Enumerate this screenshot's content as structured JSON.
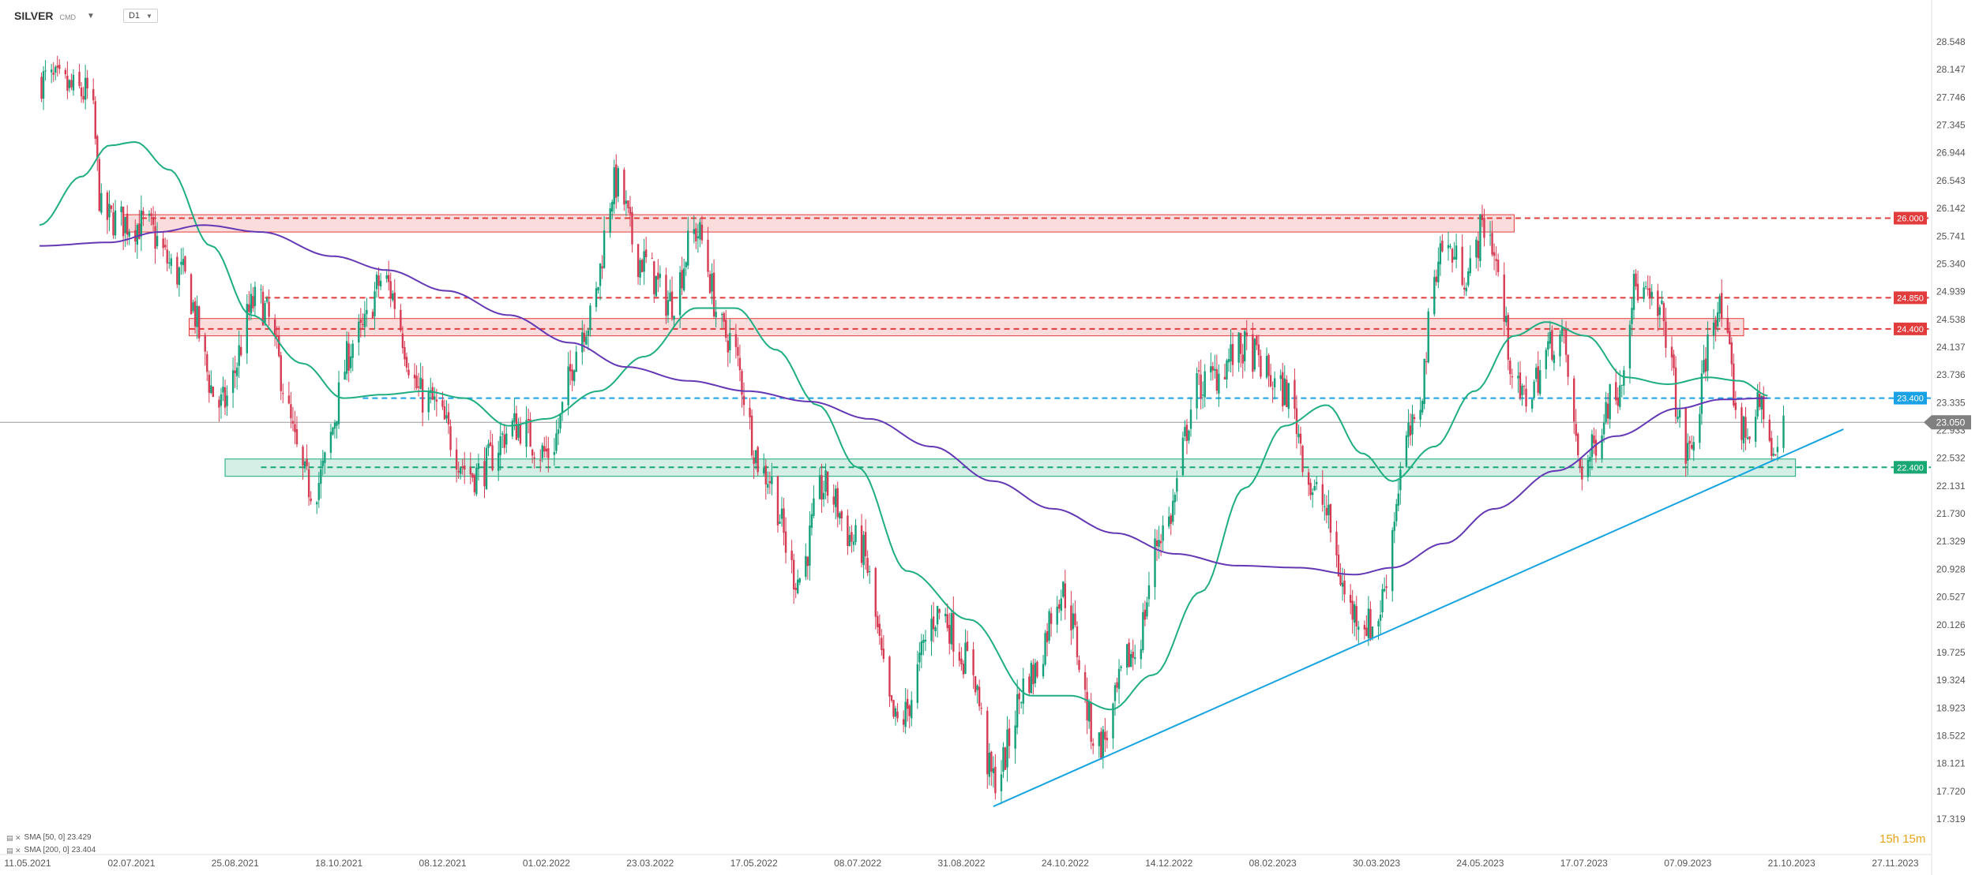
{
  "header": {
    "symbol": "SILVER",
    "symbol_type": "CMD",
    "timeframe": "D1"
  },
  "indicators_legend": [
    {
      "label": "SMA [50, 0] 23.429"
    },
    {
      "label": "SMA [200, 0] 23.404"
    }
  ],
  "timer": "15h 15m",
  "colors": {
    "bull": "#14a07a",
    "bear": "#d63b53",
    "sma50": "#1fad82",
    "sma200": "#6438b5",
    "resistance": "#e23c3c",
    "support": "#18a874",
    "trendline": "#15a4e0",
    "ref_blue": "#19a1e6",
    "current": "#888888"
  },
  "chart_data": {
    "type": "candlestick",
    "y_ticks": [
      "28.548",
      "28.147",
      "27.746",
      "27.345",
      "26.944",
      "26.543",
      "26.142",
      "25.741",
      "25.340",
      "24.939",
      "24.538",
      "24.137",
      "23.736",
      "23.335",
      "22.933",
      "22.532",
      "22.131",
      "21.730",
      "21.329",
      "20.928",
      "20.527",
      "20.126",
      "19.725",
      "19.324",
      "18.923",
      "18.522",
      "18.121",
      "17.720",
      "17.319"
    ],
    "ylim": [
      17.319,
      28.548
    ],
    "x_ticks": [
      "11.05.2021",
      "02.07.2021",
      "25.08.2021",
      "18.10.2021",
      "08.12.2021",
      "01.02.2022",
      "23.03.2022",
      "17.05.2022",
      "08.07.2022",
      "31.08.2022",
      "24.10.2022",
      "14.12.2022",
      "08.02.2023",
      "30.03.2023",
      "24.05.2023",
      "17.07.2023",
      "07.09.2023",
      "21.10.2023",
      "27.11.2023"
    ],
    "xlim": [
      "2021-05-11",
      "2023-11-27"
    ],
    "path_points": [
      [
        "2021-05-11",
        28.0
      ],
      [
        "2021-06-05",
        27.8
      ],
      [
        "2021-06-12",
        26.0
      ],
      [
        "2021-07-02",
        25.9
      ],
      [
        "2021-07-20",
        25.2
      ],
      [
        "2021-08-10",
        23.3
      ],
      [
        "2021-08-28",
        24.8
      ],
      [
        "2021-09-25",
        22.1
      ],
      [
        "2021-10-18",
        24.3
      ],
      [
        "2021-10-30",
        25.1
      ],
      [
        "2021-11-20",
        23.4
      ],
      [
        "2021-12-15",
        22.3
      ],
      [
        "2022-01-05",
        23.0
      ],
      [
        "2022-01-20",
        22.6
      ],
      [
        "2022-02-10",
        24.5
      ],
      [
        "2022-02-24",
        26.5
      ],
      [
        "2022-03-08",
        25.4
      ],
      [
        "2022-03-23",
        24.8
      ],
      [
        "2022-04-05",
        25.8
      ],
      [
        "2022-04-20",
        24.3
      ],
      [
        "2022-05-10",
        22.3
      ],
      [
        "2022-05-26",
        20.8
      ],
      [
        "2022-06-08",
        22.1
      ],
      [
        "2022-06-25",
        21.3
      ],
      [
        "2022-07-15",
        18.7
      ],
      [
        "2022-08-05",
        20.3
      ],
      [
        "2022-08-20",
        19.6
      ],
      [
        "2022-09-01",
        17.9
      ],
      [
        "2022-09-20",
        19.4
      ],
      [
        "2022-10-05",
        20.6
      ],
      [
        "2022-10-24",
        18.4
      ],
      [
        "2022-11-10",
        19.7
      ],
      [
        "2022-11-25",
        21.5
      ],
      [
        "2022-12-14",
        23.6
      ],
      [
        "2023-01-05",
        24.1
      ],
      [
        "2023-01-25",
        23.5
      ],
      [
        "2023-02-10",
        22.0
      ],
      [
        "2023-03-01",
        20.3
      ],
      [
        "2023-03-10",
        20.1
      ],
      [
        "2023-03-30",
        22.9
      ],
      [
        "2023-04-14",
        25.6
      ],
      [
        "2023-04-27",
        25.2
      ],
      [
        "2023-05-05",
        25.9
      ],
      [
        "2023-05-24",
        23.4
      ],
      [
        "2023-06-12",
        24.3
      ],
      [
        "2023-06-23",
        22.4
      ],
      [
        "2023-07-10",
        23.5
      ],
      [
        "2023-07-20",
        25.0
      ],
      [
        "2023-08-01",
        24.6
      ],
      [
        "2023-08-15",
        22.6
      ],
      [
        "2023-08-30",
        24.7
      ],
      [
        "2023-09-12",
        22.9
      ],
      [
        "2023-09-22",
        23.3
      ],
      [
        "2023-09-27",
        22.5
      ],
      [
        "2023-10-02",
        23.0
      ]
    ],
    "sma50": [
      [
        "2021-05-11",
        25.9
      ],
      [
        "2021-06-01",
        26.6
      ],
      [
        "2021-06-15",
        27.05
      ],
      [
        "2021-06-28",
        27.1
      ],
      [
        "2021-07-15",
        26.7
      ],
      [
        "2021-08-05",
        25.6
      ],
      [
        "2021-08-25",
        24.6
      ],
      [
        "2021-09-20",
        23.9
      ],
      [
        "2021-10-10",
        23.4
      ],
      [
        "2021-10-30",
        23.45
      ],
      [
        "2021-11-20",
        23.5
      ],
      [
        "2021-12-10",
        23.4
      ],
      [
        "2022-01-01",
        23.0
      ],
      [
        "2022-01-20",
        23.1
      ],
      [
        "2022-02-15",
        23.5
      ],
      [
        "2022-03-10",
        24.0
      ],
      [
        "2022-04-05",
        24.7
      ],
      [
        "2022-04-25",
        24.7
      ],
      [
        "2022-05-15",
        24.1
      ],
      [
        "2022-06-05",
        23.3
      ],
      [
        "2022-06-25",
        22.4
      ],
      [
        "2022-07-20",
        20.9
      ],
      [
        "2022-08-20",
        20.2
      ],
      [
        "2022-09-20",
        19.1
      ],
      [
        "2022-10-10",
        19.1
      ],
      [
        "2022-10-30",
        18.9
      ],
      [
        "2022-11-20",
        19.4
      ],
      [
        "2022-12-14",
        20.6
      ],
      [
        "2023-01-05",
        22.1
      ],
      [
        "2023-01-25",
        23.0
      ],
      [
        "2023-02-15",
        23.3
      ],
      [
        "2023-03-05",
        22.6
      ],
      [
        "2023-03-20",
        22.2
      ],
      [
        "2023-04-10",
        22.7
      ],
      [
        "2023-04-30",
        23.5
      ],
      [
        "2023-05-20",
        24.3
      ],
      [
        "2023-06-05",
        24.5
      ],
      [
        "2023-06-25",
        24.3
      ],
      [
        "2023-07-15",
        23.7
      ],
      [
        "2023-08-05",
        23.6
      ],
      [
        "2023-08-25",
        23.7
      ],
      [
        "2023-09-10",
        23.65
      ],
      [
        "2023-09-25",
        23.43
      ]
    ],
    "sma200": [
      [
        "2021-05-11",
        25.6
      ],
      [
        "2021-06-15",
        25.65
      ],
      [
        "2021-07-10",
        25.8
      ],
      [
        "2021-08-01",
        25.9
      ],
      [
        "2021-08-30",
        25.8
      ],
      [
        "2021-10-05",
        25.45
      ],
      [
        "2021-11-01",
        25.25
      ],
      [
        "2021-12-01",
        24.95
      ],
      [
        "2022-01-01",
        24.6
      ],
      [
        "2022-02-01",
        24.2
      ],
      [
        "2022-03-01",
        23.85
      ],
      [
        "2022-04-01",
        23.65
      ],
      [
        "2022-05-01",
        23.5
      ],
      [
        "2022-06-01",
        23.35
      ],
      [
        "2022-07-01",
        23.1
      ],
      [
        "2022-08-01",
        22.7
      ],
      [
        "2022-09-01",
        22.2
      ],
      [
        "2022-10-01",
        21.8
      ],
      [
        "2022-11-01",
        21.45
      ],
      [
        "2022-12-01",
        21.15
      ],
      [
        "2023-01-01",
        20.98
      ],
      [
        "2023-02-01",
        20.95
      ],
      [
        "2023-03-01",
        20.85
      ],
      [
        "2023-03-20",
        20.95
      ],
      [
        "2023-04-15",
        21.3
      ],
      [
        "2023-05-10",
        21.8
      ],
      [
        "2023-06-10",
        22.35
      ],
      [
        "2023-07-10",
        22.85
      ],
      [
        "2023-08-10",
        23.25
      ],
      [
        "2023-09-01",
        23.38
      ],
      [
        "2023-09-25",
        23.4
      ]
    ],
    "zones": [
      {
        "kind": "resistance",
        "start": "2021-06-22",
        "end": "2023-05-20",
        "y1": 25.8,
        "y2": 26.05
      },
      {
        "kind": "resistance",
        "start": "2021-07-25",
        "end": "2023-09-12",
        "y1": 24.3,
        "y2": 24.55
      },
      {
        "kind": "support",
        "start": "2021-08-12",
        "end": "2023-10-08",
        "y1": 22.27,
        "y2": 22.52
      }
    ],
    "levels": [
      {
        "value": 26.0,
        "label": "26.000",
        "kind": "resistance",
        "start": "2021-07-01"
      },
      {
        "value": 24.85,
        "label": "24.850",
        "kind": "resistance",
        "start": "2021-09-01"
      },
      {
        "value": 24.4,
        "label": "24.400",
        "kind": "resistance",
        "start": "2021-07-25"
      },
      {
        "value": 23.4,
        "label": "23.400",
        "kind": "ref_blue",
        "start": "2021-10-20"
      },
      {
        "value": 22.4,
        "label": "22.400",
        "kind": "support",
        "start": "2021-08-30"
      }
    ],
    "current_price": {
      "value": 23.05,
      "label": "23.050"
    },
    "trendline": {
      "p1": [
        "2022-09-01",
        17.5
      ],
      "p2": [
        "2023-11-01",
        22.95
      ]
    }
  }
}
